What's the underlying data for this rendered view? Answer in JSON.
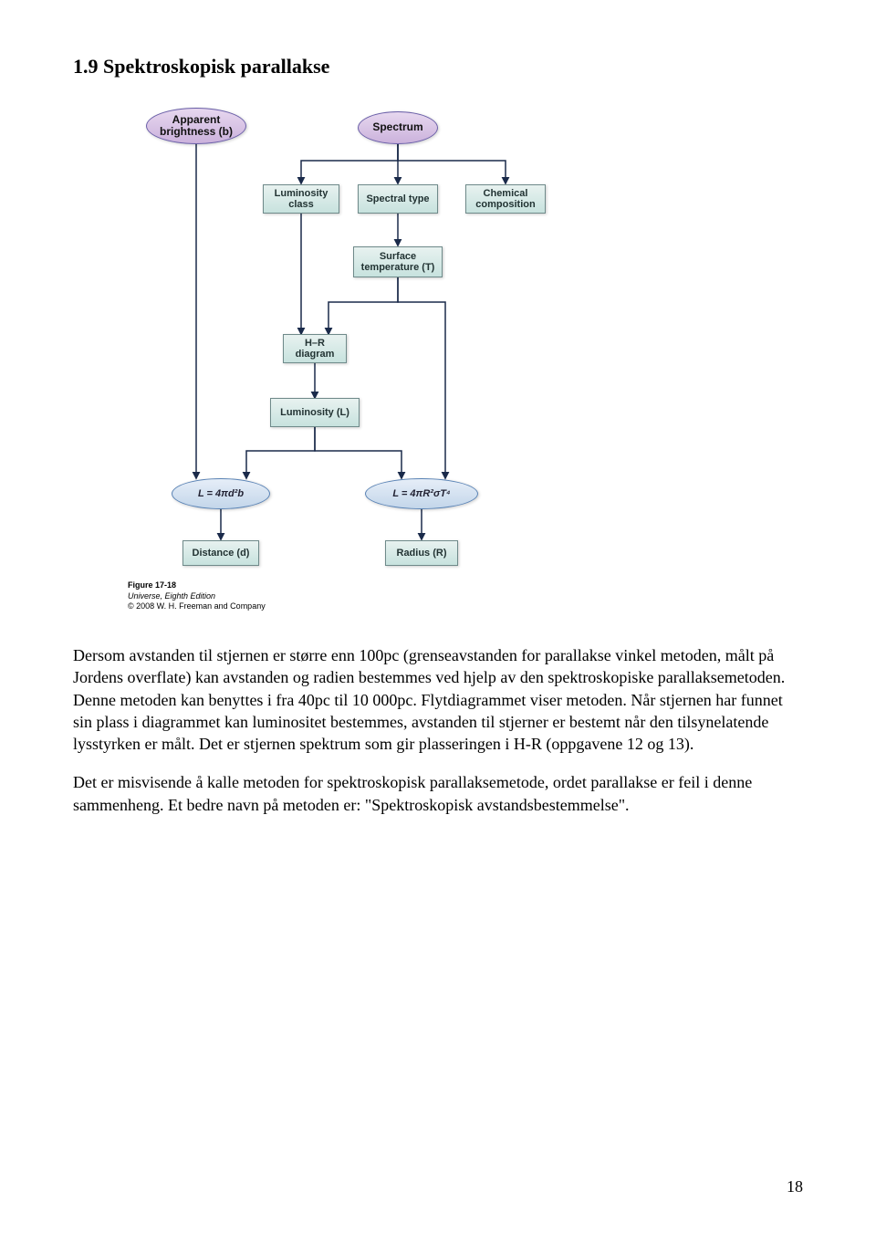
{
  "heading": "1.9  Spektroskopisk parallakse",
  "diagram": {
    "nodes": {
      "apparent_brightness": "Apparent\nbrightness (b)",
      "spectrum": "Spectrum",
      "luminosity_class": "Luminosity\nclass",
      "spectral_type": "Spectral type",
      "chemical_composition": "Chemical\ncomposition",
      "surface_temperature": "Surface\ntemperature (T)",
      "hr_diagram": "H–R\ndiagram",
      "luminosity_l": "Luminosity (L)",
      "formula_distance": "L = 4πd²b",
      "formula_radius": "L = 4πR²σT⁴",
      "distance": "Distance (d)",
      "radius": "Radius (R)"
    },
    "colors": {
      "oval_fill_top": "#e7d8ef",
      "oval_fill_bottom": "#cbb2dc",
      "oval_border": "#6a5fa8",
      "oval_blue_fill_top": "#e6eef8",
      "oval_blue_fill_bottom": "#c3d6ea",
      "oval_blue_border": "#5a83b5",
      "box_fill_top": "#e8f2f0",
      "box_fill_bottom": "#c7e2de",
      "box_border": "#6f8a8a",
      "arrow": "#1a2a4a"
    },
    "credit": {
      "figure": "Figure 17-18",
      "book": "Universe, Eighth Edition",
      "copyright": "© 2008 W. H. Freeman and Company"
    }
  },
  "paragraphs": {
    "p1": "Dersom avstanden til stjernen er større enn 100pc (grenseavstanden for parallakse vinkel metoden, målt på Jordens overflate) kan avstanden og radien bestemmes ved hjelp av den spektroskopiske parallaksemetoden. Denne metoden kan benyttes i fra 40pc til 10 000pc. Flytdiagrammet viser metoden. Når stjernen har funnet sin plass i diagrammet kan luminositet bestemmes, avstanden til stjerner er bestemt når den tilsynelatende lysstyrken er målt. Det er stjernen spektrum som gir plasseringen i H-R (oppgavene 12 og 13).",
    "p2": "Det er misvisende å kalle metoden for spektroskopisk parallaksemetode, ordet parallakse er feil i denne sammenheng. Et bedre navn på metoden er: \"Spektroskopisk avstandsbestemmelse\"."
  },
  "page_number": "18"
}
